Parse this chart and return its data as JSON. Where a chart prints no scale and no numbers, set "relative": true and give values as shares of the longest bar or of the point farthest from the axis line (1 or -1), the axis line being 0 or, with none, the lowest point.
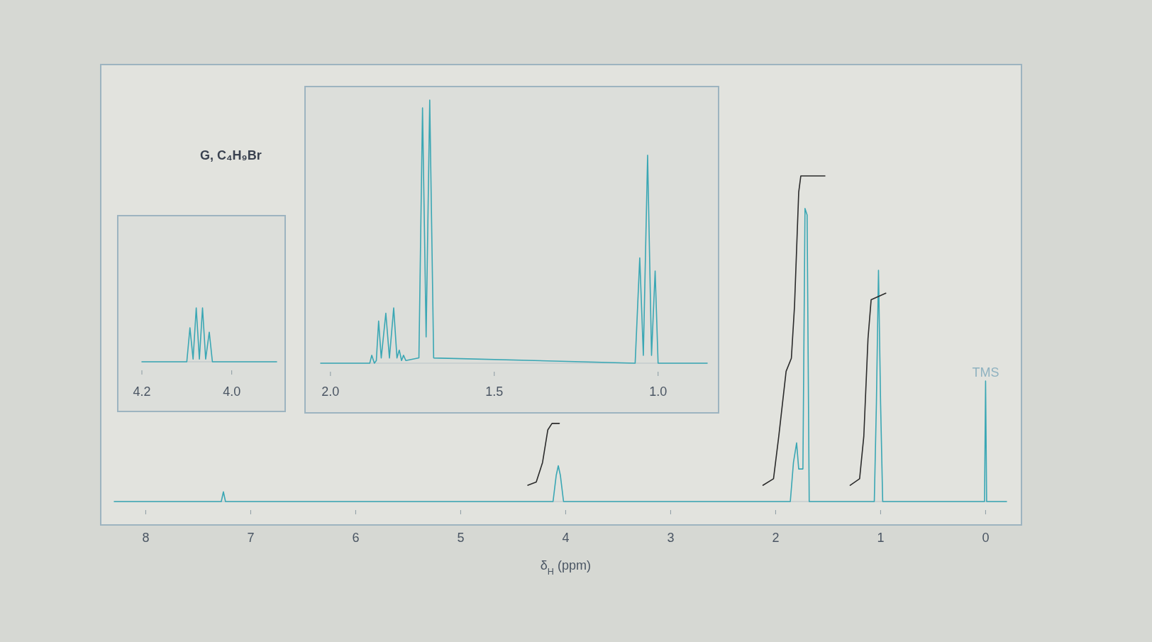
{
  "chart_data": [
    {
      "type": "line",
      "title": "G, C₄H₉Br",
      "xlabel": "δ$_{H}$ (ppm)",
      "relative": true,
      "tick_labels": "x",
      "xlim": [
        8.3,
        -0.2
      ],
      "xticks": [
        8,
        7,
        6,
        5,
        4,
        3,
        2,
        1,
        0
      ],
      "annotations": [
        {
          "text": "TMS",
          "x": 0,
          "y": 0.37
        }
      ],
      "series": [
        {
          "color": "#3aa7b4",
          "x": [
            8.3,
            7.28,
            7.26,
            7.24,
            4.12,
            4.09,
            4.07,
            4.05,
            4.02,
            1.86,
            1.83,
            1.8,
            1.78,
            1.74,
            1.72,
            1.7,
            1.68,
            1.06,
            1.04,
            1.02,
            1.0,
            0.98,
            0.01,
            0,
            -0.01,
            -0.2
          ],
          "values": [
            0,
            0,
            0.03,
            0,
            0,
            0.08,
            0.11,
            0.08,
            0,
            0,
            0.12,
            0.18,
            0.1,
            0.1,
            0.9,
            0.88,
            0,
            0,
            0.3,
            0.71,
            0.3,
            0,
            0,
            0.37,
            0,
            0
          ]
        },
        {
          "color": "#2b2b2b",
          "x": [
            4.36,
            4.28,
            4.22,
            4.17,
            4.13,
            4.06
          ],
          "values": [
            0.05,
            0.06,
            0.12,
            0.22,
            0.24,
            0.24
          ]
        },
        {
          "color": "#2b2b2b",
          "x": [
            2.12,
            2.02,
            1.97,
            1.9,
            1.85,
            1.82,
            1.78,
            1.76,
            1.53
          ],
          "values": [
            0.05,
            0.07,
            0.2,
            0.4,
            0.44,
            0.6,
            0.95,
            1.0,
            1.0
          ]
        },
        {
          "color": "#2b2b2b",
          "x": [
            1.29,
            1.2,
            1.16,
            1.12,
            1.09,
            0.95
          ],
          "values": [
            0.05,
            0.07,
            0.2,
            0.5,
            0.62,
            0.64
          ]
        }
      ]
    },
    {
      "type": "line",
      "relative": true,
      "tick_labels": "x",
      "xlim": [
        4.2,
        3.9
      ],
      "xticks": [
        4.2,
        {
          "value": 4,
          "label": "4.0"
        }
      ],
      "series": [
        {
          "color": "#3aa7b4",
          "x": [
            4.2,
            4.1,
            4.093,
            4.086,
            4.079,
            4.072,
            4.065,
            4.058,
            4.05,
            4.043,
            3.9
          ],
          "values": [
            0,
            0,
            0.63,
            0.05,
            1,
            0.05,
            1,
            0.05,
            0.55,
            0,
            0
          ]
        }
      ]
    },
    {
      "type": "line",
      "relative": true,
      "tick_labels": "x",
      "xlim": [
        2.03,
        0.85
      ],
      "xticks": [
        {
          "value": 2,
          "label": "2.0"
        },
        1.5,
        {
          "value": 1,
          "label": "1.0"
        }
      ],
      "series": [
        {
          "color": "#3aa7b4",
          "x": [
            2.03,
            1.88,
            1.874,
            1.866,
            1.86,
            1.853,
            1.845,
            1.831,
            1.82,
            1.807,
            1.797,
            1.79,
            1.783,
            1.777,
            1.77,
            1.73,
            1.719,
            1.708,
            1.697,
            1.685,
            1.07,
            1.056,
            1.045,
            1.032,
            1.02,
            1.009,
            1.0,
            0.85
          ],
          "values": [
            0,
            0,
            0.03,
            0,
            0.01,
            0.16,
            0.02,
            0.19,
            0.02,
            0.21,
            0.02,
            0.05,
            0.01,
            0.03,
            0.01,
            0.02,
            0.97,
            0.1,
            1,
            0.02,
            0,
            0.4,
            0.03,
            0.79,
            0.03,
            0.35,
            0,
            0
          ]
        }
      ]
    }
  ]
}
